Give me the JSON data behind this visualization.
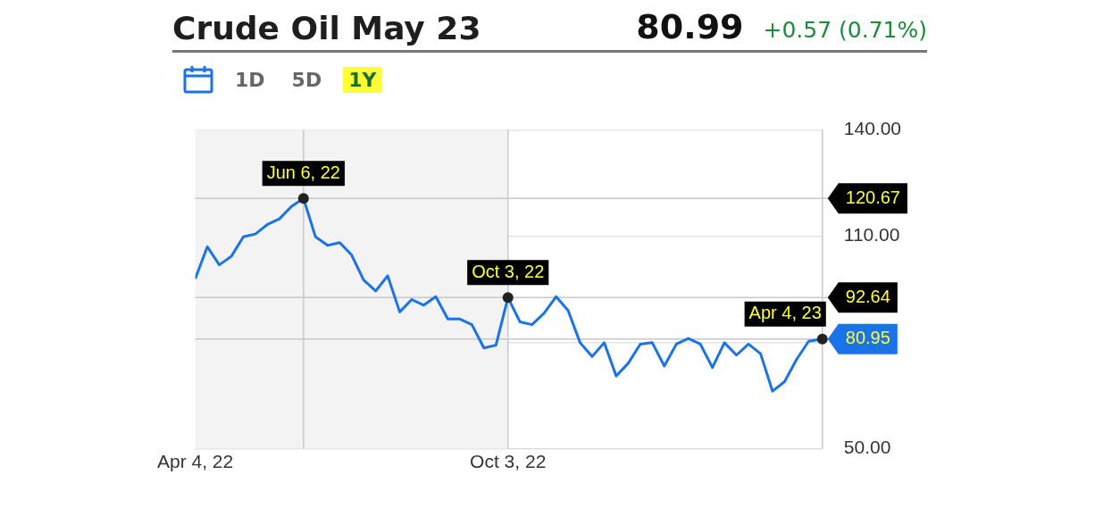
{
  "chart_data": {
    "type": "line",
    "title": "Crude Oil May 23",
    "annotations": [
      "80.99",
      "+0.57 (0.71%)",
      "1D",
      "5D",
      "1Y"
    ],
    "x": [
      "2022-04-04",
      "2022-04-11",
      "2022-04-18",
      "2022-04-25",
      "2022-05-02",
      "2022-05-09",
      "2022-05-16",
      "2022-05-23",
      "2022-05-30",
      "2022-06-06",
      "2022-06-13",
      "2022-06-20",
      "2022-06-27",
      "2022-07-04",
      "2022-07-11",
      "2022-07-18",
      "2022-07-25",
      "2022-08-01",
      "2022-08-08",
      "2022-08-15",
      "2022-08-22",
      "2022-08-29",
      "2022-09-05",
      "2022-09-12",
      "2022-09-19",
      "2022-09-26",
      "2022-10-03",
      "2022-10-10",
      "2022-10-17",
      "2022-10-24",
      "2022-10-31",
      "2022-11-07",
      "2022-11-14",
      "2022-11-21",
      "2022-11-28",
      "2022-12-05",
      "2022-12-12",
      "2022-12-19",
      "2022-12-26",
      "2023-01-02",
      "2023-01-09",
      "2023-01-16",
      "2023-01-23",
      "2023-01-30",
      "2023-02-06",
      "2023-02-13",
      "2023-02-20",
      "2023-02-27",
      "2023-03-06",
      "2023-03-13",
      "2023-03-20",
      "2023-03-27",
      "2023-04-04"
    ],
    "series": [
      {
        "color": "#1a73e8",
        "values": [
          98.0,
          107.0,
          101.9,
          104.3,
          109.8,
          110.6,
          113.3,
          114.9,
          118.4,
          120.67,
          109.8,
          107.4,
          108.2,
          104.7,
          97.6,
          94.5,
          98.8,
          88.6,
          92.1,
          90.5,
          92.9,
          86.6,
          86.6,
          85.0,
          78.4,
          79.2,
          92.64,
          85.8,
          85.0,
          88.2,
          92.9,
          89.0,
          79.9,
          76.0,
          79.9,
          70.5,
          74.1,
          79.5,
          79.9,
          73.3,
          79.5,
          81.1,
          79.5,
          72.9,
          79.9,
          76.4,
          79.5,
          76.8,
          66.2,
          68.9,
          75.2,
          80.3,
          80.95
        ]
      }
    ],
    "xlim": [
      "2022-04-04",
      "2023-04-04"
    ],
    "xticks": [
      {
        "value": "2022-04-04",
        "label": "Apr 4, 22"
      },
      {
        "value": "2022-10-03",
        "label": "Oct 3, 22"
      }
    ],
    "ylim": [
      50,
      140
    ],
    "yticks": [
      {
        "value": 50,
        "label": "50.00"
      },
      {
        "value": 80,
        "label": null
      },
      {
        "value": 110,
        "label": "110.00"
      },
      {
        "value": 140,
        "label": "140.00"
      }
    ],
    "grid": "y",
    "bands": [
      {
        "axis": "x",
        "from": "2022-04-04",
        "to": "2022-10-03",
        "color": "#f3f3f3"
      }
    ],
    "ref_lines": [
      {
        "axis": "x",
        "value": "2022-06-06",
        "label": "Jun 6, 22",
        "color": "#c8c8cc"
      },
      {
        "axis": "x",
        "value": "2022-10-03",
        "label": "Oct 3, 22",
        "color": "#c8c8cc"
      },
      {
        "axis": "x",
        "value": "2023-04-04",
        "label": "Apr 4, 23",
        "color": "#c8c8cc"
      },
      {
        "axis": "y",
        "value": 120.67,
        "label": "120.67",
        "color": "#c8c8cc"
      },
      {
        "axis": "y",
        "value": 92.64,
        "label": "92.64",
        "color": "#c8c8cc"
      },
      {
        "axis": "y",
        "value": 80.95,
        "label": "80.95",
        "color": "#c8c8cc"
      }
    ]
  }
}
